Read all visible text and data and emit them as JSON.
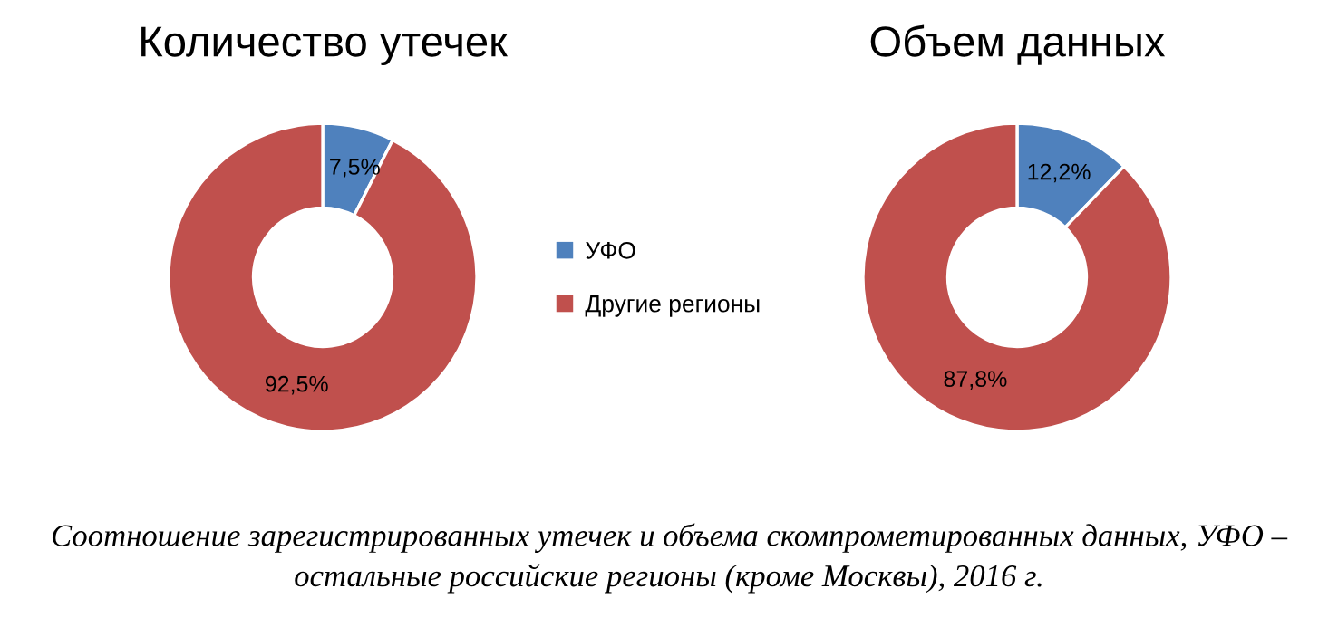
{
  "chart_data": [
    {
      "type": "donut",
      "title": "Количество утечек",
      "categories": [
        "УФО",
        "Другие регионы"
      ],
      "values": [
        7.5,
        92.5
      ],
      "colors": [
        "#4f81bd",
        "#c0504d"
      ],
      "value_labels": [
        "7,5%",
        "92,5%"
      ],
      "legend": "right",
      "annotations": [
        "Соотношение зарегистрированных утечек и объема скомпрометированных данных, УФО – остальные российские регионы (кроме Москвы), 2016 г."
      ]
    },
    {
      "type": "donut",
      "title": "Объем данных",
      "values": [
        12.2,
        87.8
      ],
      "colors": [
        "#4f81bd",
        "#c0504d"
      ],
      "value_labels": [
        "12,2%",
        "87,8%"
      ]
    }
  ]
}
